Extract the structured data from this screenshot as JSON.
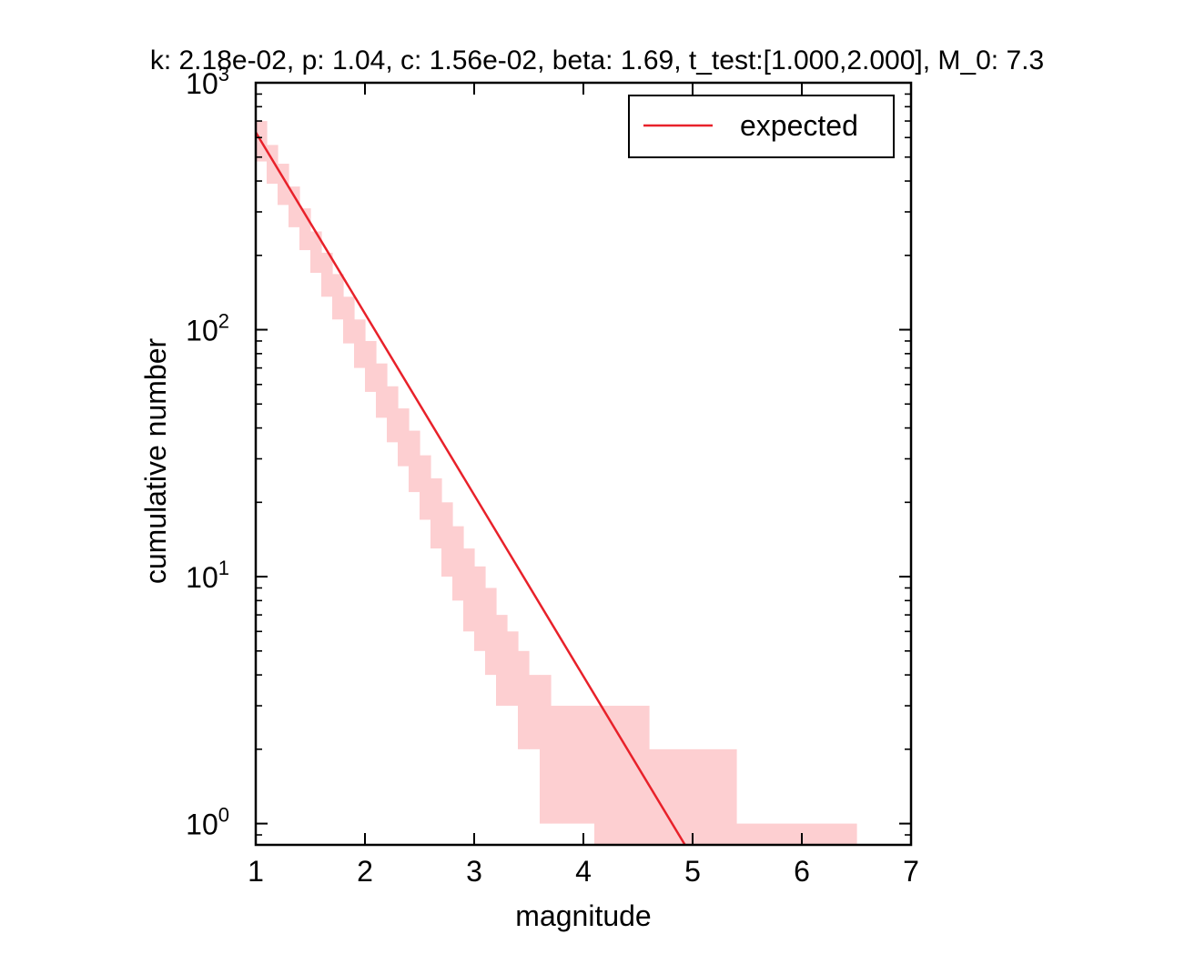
{
  "chart_data": {
    "type": "line",
    "title": "k: 2.18e-02, p: 1.04, c: 1.56e-02, beta: 1.69, t_test:[1.000,2.000], M_0: 7.3",
    "xlabel": "magnitude",
    "ylabel": "cumulative number",
    "xlim": [
      1,
      7
    ],
    "ylim": [
      0.82,
      1000
    ],
    "yscale": "log",
    "xticks": [
      "1",
      "2",
      "3",
      "4",
      "5",
      "6",
      "7"
    ],
    "yticks": [
      {
        "value": 1,
        "base": "10",
        "exp": "0"
      },
      {
        "value": 10,
        "base": "10",
        "exp": "1"
      },
      {
        "value": 100,
        "base": "10",
        "exp": "2"
      },
      {
        "value": 1000,
        "base": "10",
        "exp": "3"
      }
    ],
    "grid": false,
    "legend": {
      "position": "top-right",
      "entries": [
        "expected"
      ]
    },
    "series": [
      {
        "name": "expected",
        "color": "#e8212a",
        "style": "line",
        "x": [
          1.0,
          4.93
        ],
        "y": [
          630,
          0.82
        ]
      }
    ],
    "band": {
      "color": "#fdcfd1",
      "bins": [
        {
          "x0": 1.0,
          "x1": 1.1,
          "lo": 480,
          "hi": 700
        },
        {
          "x0": 1.1,
          "x1": 1.2,
          "lo": 390,
          "hi": 560
        },
        {
          "x0": 1.2,
          "x1": 1.3,
          "lo": 320,
          "hi": 470
        },
        {
          "x0": 1.3,
          "x1": 1.4,
          "lo": 260,
          "hi": 380
        },
        {
          "x0": 1.4,
          "x1": 1.5,
          "lo": 210,
          "hi": 310
        },
        {
          "x0": 1.5,
          "x1": 1.6,
          "lo": 170,
          "hi": 250
        },
        {
          "x0": 1.6,
          "x1": 1.7,
          "lo": 136,
          "hi": 205
        },
        {
          "x0": 1.7,
          "x1": 1.8,
          "lo": 110,
          "hi": 168
        },
        {
          "x0": 1.8,
          "x1": 1.9,
          "lo": 88,
          "hi": 136
        },
        {
          "x0": 1.9,
          "x1": 2.0,
          "lo": 70,
          "hi": 110
        },
        {
          "x0": 2.0,
          "x1": 2.1,
          "lo": 56,
          "hi": 90
        },
        {
          "x0": 2.1,
          "x1": 2.2,
          "lo": 44,
          "hi": 73
        },
        {
          "x0": 2.2,
          "x1": 2.3,
          "lo": 35,
          "hi": 59
        },
        {
          "x0": 2.3,
          "x1": 2.4,
          "lo": 28,
          "hi": 48
        },
        {
          "x0": 2.4,
          "x1": 2.5,
          "lo": 22,
          "hi": 39
        },
        {
          "x0": 2.5,
          "x1": 2.6,
          "lo": 17,
          "hi": 31
        },
        {
          "x0": 2.6,
          "x1": 2.7,
          "lo": 13,
          "hi": 25
        },
        {
          "x0": 2.7,
          "x1": 2.8,
          "lo": 10,
          "hi": 20
        },
        {
          "x0": 2.8,
          "x1": 2.9,
          "lo": 8,
          "hi": 16
        },
        {
          "x0": 2.9,
          "x1": 3.0,
          "lo": 6,
          "hi": 13
        },
        {
          "x0": 3.0,
          "x1": 3.1,
          "lo": 5,
          "hi": 11
        },
        {
          "x0": 3.1,
          "x1": 3.2,
          "lo": 4,
          "hi": 9
        },
        {
          "x0": 3.2,
          "x1": 3.3,
          "lo": 3,
          "hi": 7
        },
        {
          "x0": 3.3,
          "x1": 3.4,
          "lo": 3,
          "hi": 6
        },
        {
          "x0": 3.4,
          "x1": 3.5,
          "lo": 2,
          "hi": 5
        },
        {
          "x0": 3.5,
          "x1": 3.6,
          "lo": 2,
          "hi": 4
        },
        {
          "x0": 3.6,
          "x1": 3.7,
          "lo": 1,
          "hi": 4
        },
        {
          "x0": 3.7,
          "x1": 3.8,
          "lo": 1,
          "hi": 3
        },
        {
          "x0": 3.8,
          "x1": 4.1,
          "lo": 1,
          "hi": 3
        },
        {
          "x0": 4.1,
          "x1": 4.6,
          "lo": 0.82,
          "hi": 3
        },
        {
          "x0": 4.6,
          "x1": 5.4,
          "lo": 0.82,
          "hi": 2
        },
        {
          "x0": 5.4,
          "x1": 6.5,
          "lo": 0.82,
          "hi": 1
        }
      ]
    }
  }
}
